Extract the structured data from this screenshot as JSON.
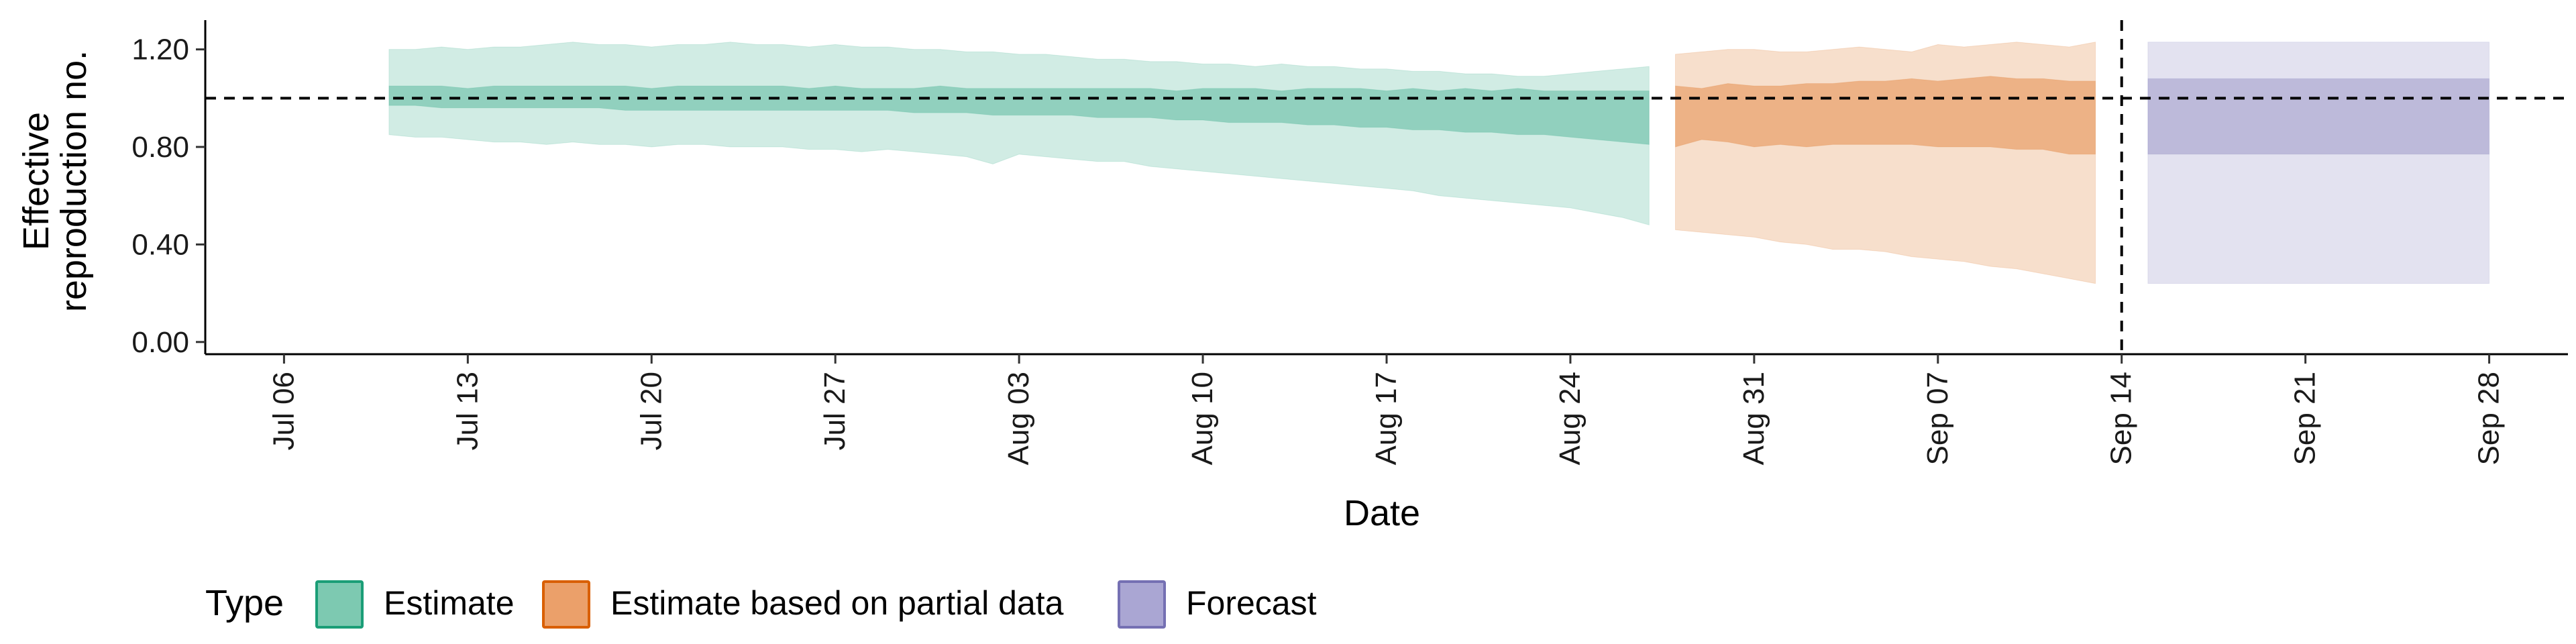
{
  "chart_data": {
    "type": "area",
    "title": "",
    "xlabel": "Date",
    "ylabel_lines": [
      "Effective",
      "reproduction no."
    ],
    "x_start": "2020-07-10",
    "ylim": [
      -0.05,
      1.32
    ],
    "y_ticks": [
      {
        "value": 0.0,
        "label": "0.00"
      },
      {
        "value": 0.4,
        "label": "0.40"
      },
      {
        "value": 0.8,
        "label": "0.80"
      },
      {
        "value": 1.2,
        "label": "1.20"
      }
    ],
    "x_ticks": [
      {
        "date": "2020-07-06",
        "label": "Jul 06"
      },
      {
        "date": "2020-07-13",
        "label": "Jul 13"
      },
      {
        "date": "2020-07-20",
        "label": "Jul 20"
      },
      {
        "date": "2020-07-27",
        "label": "Jul 27"
      },
      {
        "date": "2020-08-03",
        "label": "Aug 03"
      },
      {
        "date": "2020-08-10",
        "label": "Aug 10"
      },
      {
        "date": "2020-08-17",
        "label": "Aug 17"
      },
      {
        "date": "2020-08-24",
        "label": "Aug 24"
      },
      {
        "date": "2020-08-31",
        "label": "Aug 31"
      },
      {
        "date": "2020-09-07",
        "label": "Sep 07"
      },
      {
        "date": "2020-09-14",
        "label": "Sep 14"
      },
      {
        "date": "2020-09-21",
        "label": "Sep 21"
      },
      {
        "date": "2020-09-28",
        "label": "Sep 28"
      }
    ],
    "reference_hline": 1.0,
    "vline_date": "2020-09-14",
    "legend": {
      "title": "Type",
      "position": "bottom",
      "items": [
        {
          "label": "Estimate",
          "fill": "#7dc9b1",
          "stroke": "#1b9e77"
        },
        {
          "label": "Estimate based on partial data",
          "fill": "#eba06a",
          "stroke": "#d95f02"
        },
        {
          "label": "Forecast",
          "fill": "#aaa6d3",
          "stroke": "#7570b3"
        }
      ]
    },
    "series": [
      {
        "name": "Estimate",
        "color": "#1b9e77",
        "x_start": "2020-07-10",
        "x_end": "2020-08-27",
        "lower90": [
          0.85,
          0.84,
          0.84,
          0.83,
          0.82,
          0.82,
          0.81,
          0.82,
          0.81,
          0.81,
          0.8,
          0.81,
          0.81,
          0.8,
          0.8,
          0.8,
          0.79,
          0.79,
          0.78,
          0.79,
          0.78,
          0.77,
          0.76,
          0.73,
          0.77,
          0.76,
          0.75,
          0.74,
          0.74,
          0.72,
          0.71,
          0.7,
          0.69,
          0.68,
          0.67,
          0.66,
          0.65,
          0.64,
          0.63,
          0.62,
          0.6,
          0.59,
          0.58,
          0.57,
          0.56,
          0.55,
          0.53,
          0.51,
          0.48
        ],
        "upper90": [
          1.2,
          1.2,
          1.21,
          1.2,
          1.21,
          1.21,
          1.22,
          1.23,
          1.22,
          1.22,
          1.21,
          1.22,
          1.22,
          1.23,
          1.22,
          1.22,
          1.21,
          1.22,
          1.21,
          1.21,
          1.2,
          1.2,
          1.19,
          1.19,
          1.18,
          1.18,
          1.17,
          1.16,
          1.16,
          1.15,
          1.15,
          1.14,
          1.14,
          1.13,
          1.14,
          1.13,
          1.13,
          1.12,
          1.12,
          1.11,
          1.11,
          1.1,
          1.1,
          1.09,
          1.09,
          1.1,
          1.11,
          1.12,
          1.13
        ],
        "lower50": [
          0.97,
          0.97,
          0.96,
          0.96,
          0.96,
          0.96,
          0.96,
          0.96,
          0.96,
          0.95,
          0.95,
          0.95,
          0.95,
          0.95,
          0.95,
          0.95,
          0.95,
          0.95,
          0.95,
          0.95,
          0.94,
          0.94,
          0.94,
          0.93,
          0.93,
          0.93,
          0.93,
          0.92,
          0.92,
          0.92,
          0.91,
          0.91,
          0.9,
          0.9,
          0.9,
          0.89,
          0.89,
          0.88,
          0.88,
          0.87,
          0.87,
          0.86,
          0.86,
          0.85,
          0.85,
          0.84,
          0.83,
          0.82,
          0.81
        ],
        "upper50": [
          1.05,
          1.05,
          1.05,
          1.04,
          1.05,
          1.05,
          1.05,
          1.05,
          1.05,
          1.05,
          1.04,
          1.05,
          1.05,
          1.05,
          1.05,
          1.05,
          1.04,
          1.05,
          1.04,
          1.04,
          1.04,
          1.05,
          1.04,
          1.04,
          1.04,
          1.04,
          1.04,
          1.04,
          1.04,
          1.04,
          1.03,
          1.04,
          1.04,
          1.04,
          1.03,
          1.04,
          1.04,
          1.04,
          1.03,
          1.04,
          1.03,
          1.04,
          1.03,
          1.04,
          1.03,
          1.03,
          1.03,
          1.03,
          1.03
        ]
      },
      {
        "name": "Estimate based on partial data",
        "color": "#d95f02",
        "x_start": "2020-08-28",
        "x_end": "2020-09-13",
        "lower90": [
          0.46,
          0.45,
          0.44,
          0.43,
          0.41,
          0.4,
          0.38,
          0.38,
          0.37,
          0.35,
          0.34,
          0.33,
          0.31,
          0.3,
          0.28,
          0.26,
          0.24
        ],
        "upper90": [
          1.18,
          1.19,
          1.2,
          1.2,
          1.19,
          1.19,
          1.2,
          1.21,
          1.2,
          1.19,
          1.22,
          1.21,
          1.22,
          1.23,
          1.22,
          1.21,
          1.23
        ],
        "lower50": [
          0.8,
          0.83,
          0.82,
          0.8,
          0.81,
          0.8,
          0.81,
          0.81,
          0.81,
          0.81,
          0.8,
          0.8,
          0.8,
          0.79,
          0.79,
          0.77,
          0.77
        ],
        "upper50": [
          1.05,
          1.04,
          1.06,
          1.05,
          1.05,
          1.06,
          1.06,
          1.07,
          1.07,
          1.08,
          1.07,
          1.08,
          1.09,
          1.08,
          1.08,
          1.07,
          1.07
        ]
      },
      {
        "name": "Forecast",
        "color": "#7570b3",
        "x_start": "2020-09-15",
        "x_end": "2020-09-28",
        "lower90": 0.24,
        "upper90": 1.23,
        "lower50": 0.77,
        "upper50": 1.08
      }
    ]
  }
}
